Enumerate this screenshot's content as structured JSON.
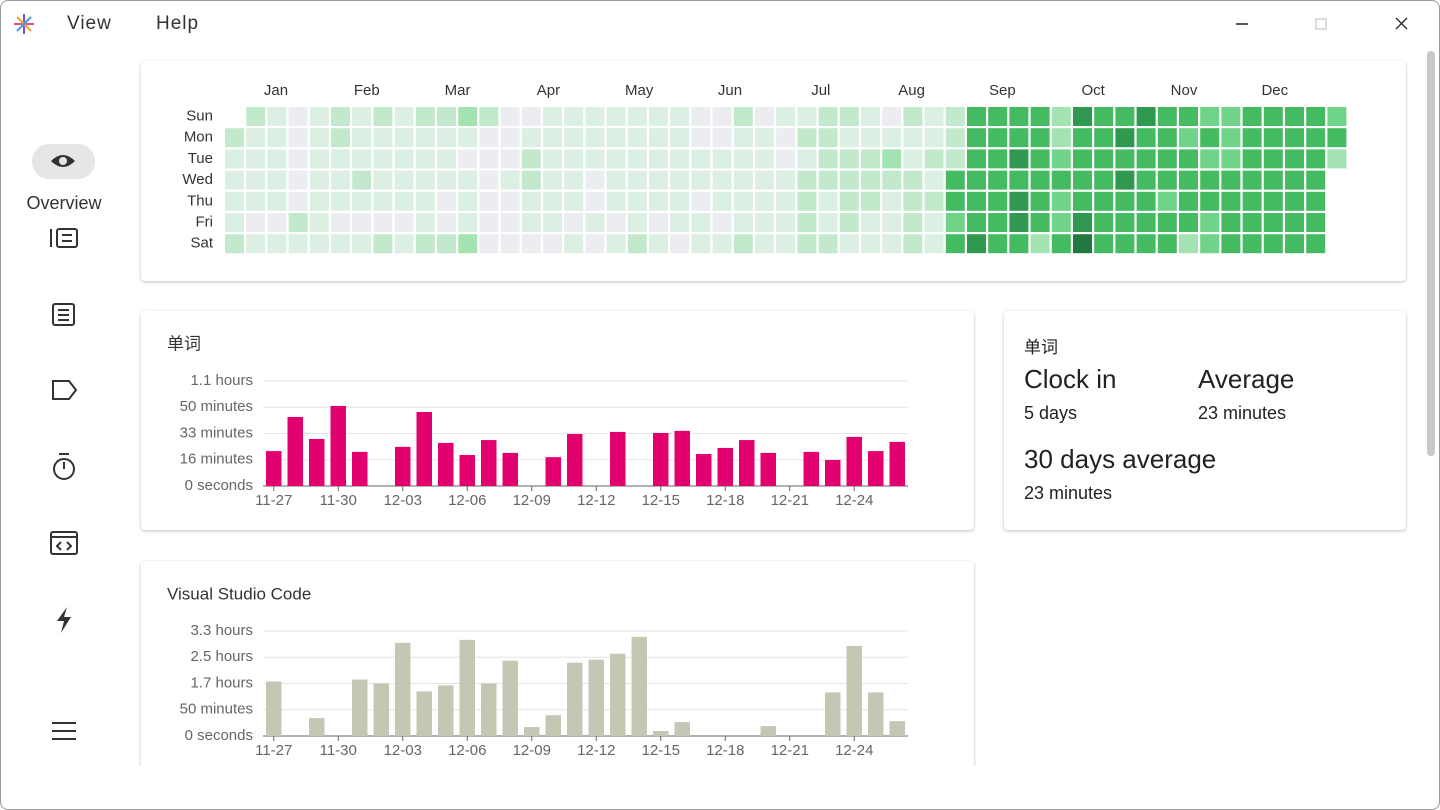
{
  "menu": [
    "View",
    "Help"
  ],
  "sidebar": {
    "active": "Overview"
  },
  "stats": {
    "title": "单词",
    "items": [
      {
        "label": "Clock in",
        "value": "5 days"
      },
      {
        "label": "Average",
        "value": "23 minutes"
      },
      {
        "label": "30 days average",
        "value": "23 minutes"
      }
    ]
  },
  "chart_data": [
    {
      "type": "heatmap",
      "months": [
        "Jan",
        "Feb",
        "Mar",
        "Apr",
        "May",
        "Jun",
        "Jul",
        "Aug",
        "Sep",
        "Oct",
        "Nov",
        "Dec"
      ],
      "weekdays": [
        "Sun",
        "Mon",
        "Tue",
        "Wed",
        "Thu",
        "Fri",
        "Sat"
      ],
      "colors": [
        "#ebedf0",
        "#dcefe3",
        "#c3e9cd",
        "#a3e3b2",
        "#6fd488",
        "#44bb60",
        "#2f9a4f",
        "#237840"
      ],
      "levels": [
        [
          null,
          2,
          1,
          0,
          1,
          2,
          1,
          2,
          1,
          2,
          2,
          3,
          2,
          0,
          0,
          1,
          1,
          1,
          1,
          1,
          1,
          1,
          0,
          0,
          2,
          0,
          1,
          1,
          2,
          2,
          1,
          0,
          2,
          1,
          2,
          5,
          5,
          5,
          5,
          3,
          6,
          5,
          5,
          6,
          5,
          5,
          4,
          4,
          5,
          5,
          5,
          5,
          4
        ],
        [
          2,
          1,
          1,
          0,
          1,
          2,
          1,
          1,
          1,
          1,
          1,
          1,
          0,
          0,
          1,
          1,
          1,
          1,
          1,
          1,
          1,
          1,
          0,
          0,
          1,
          1,
          0,
          2,
          2,
          1,
          1,
          1,
          1,
          1,
          2,
          5,
          5,
          5,
          5,
          3,
          5,
          5,
          6,
          5,
          5,
          4,
          5,
          4,
          5,
          5,
          5,
          5,
          5
        ],
        [
          1,
          1,
          1,
          0,
          1,
          1,
          1,
          1,
          1,
          1,
          1,
          0,
          0,
          0,
          2,
          1,
          1,
          1,
          1,
          1,
          1,
          1,
          1,
          1,
          1,
          1,
          0,
          1,
          2,
          2,
          2,
          3,
          1,
          2,
          2,
          5,
          5,
          6,
          5,
          4,
          5,
          5,
          5,
          5,
          5,
          5,
          4,
          4,
          5,
          5,
          5,
          5,
          3
        ],
        [
          1,
          1,
          1,
          0,
          1,
          1,
          2,
          1,
          1,
          1,
          1,
          1,
          0,
          1,
          2,
          1,
          1,
          0,
          1,
          1,
          1,
          1,
          1,
          1,
          1,
          1,
          1,
          2,
          2,
          2,
          2,
          2,
          2,
          1,
          5,
          5,
          5,
          5,
          5,
          5,
          5,
          5,
          6,
          5,
          5,
          5,
          5,
          5,
          5,
          5,
          5,
          5,
          null
        ],
        [
          1,
          1,
          1,
          0,
          1,
          1,
          1,
          1,
          1,
          1,
          0,
          1,
          0,
          0,
          1,
          1,
          1,
          0,
          1,
          1,
          1,
          1,
          0,
          1,
          1,
          1,
          1,
          2,
          1,
          2,
          2,
          1,
          2,
          2,
          5,
          5,
          5,
          6,
          5,
          4,
          5,
          5,
          5,
          5,
          4,
          5,
          5,
          5,
          5,
          5,
          5,
          5,
          null
        ],
        [
          1,
          0,
          0,
          2,
          1,
          0,
          0,
          0,
          0,
          1,
          0,
          1,
          0,
          0,
          1,
          1,
          0,
          1,
          0,
          1,
          0,
          1,
          1,
          0,
          1,
          1,
          1,
          2,
          1,
          2,
          1,
          1,
          2,
          1,
          4,
          5,
          5,
          6,
          5,
          4,
          6,
          5,
          5,
          5,
          5,
          5,
          4,
          5,
          5,
          5,
          5,
          5,
          null
        ],
        [
          2,
          1,
          1,
          1,
          1,
          1,
          1,
          2,
          1,
          2,
          2,
          3,
          0,
          0,
          0,
          0,
          1,
          0,
          1,
          2,
          1,
          0,
          1,
          1,
          2,
          1,
          1,
          2,
          2,
          1,
          1,
          1,
          2,
          1,
          5,
          6,
          5,
          5,
          3,
          5,
          7,
          5,
          5,
          5,
          5,
          3,
          4,
          5,
          5,
          5,
          5,
          5,
          null
        ]
      ]
    },
    {
      "type": "bar",
      "title": "单词",
      "color": "#e2006e",
      "categories": [
        "11-27",
        null,
        null,
        "11-30",
        null,
        null,
        "12-03",
        null,
        null,
        "12-06",
        null,
        null,
        "12-09",
        null,
        null,
        "12-12",
        null,
        null,
        "12-15",
        null,
        null,
        "12-18",
        null,
        null,
        "12-21",
        null,
        null,
        "12-24",
        null,
        null
      ],
      "values": [
        1330,
        2630,
        1790,
        3050,
        1300,
        0,
        1490,
        2820,
        1640,
        1180,
        1750,
        1260,
        0,
        1100,
        1980,
        0,
        2060,
        0,
        2020,
        2100,
        1220,
        1450,
        1750,
        1260,
        0,
        1300,
        990,
        1870,
        1330,
        1680
      ],
      "ylim": [
        0,
        4000
      ],
      "yticks": [
        {
          "value": 0,
          "label": "0 seconds"
        },
        {
          "value": 1000,
          "label": "16 minutes"
        },
        {
          "value": 2000,
          "label": "33 minutes"
        },
        {
          "value": 3000,
          "label": "50 minutes"
        },
        {
          "value": 4000,
          "label": "1.1 hours"
        }
      ],
      "grid": true
    },
    {
      "type": "bar",
      "title": "Visual Studio Code",
      "color": "#c4c7b4",
      "categories": [
        "11-27",
        null,
        null,
        "11-30",
        null,
        null,
        "12-03",
        null,
        null,
        "12-06",
        null,
        null,
        "12-09",
        null,
        null,
        "12-12",
        null,
        null,
        "12-15",
        null,
        null,
        "12-18",
        null,
        null,
        "12-21",
        null,
        null,
        "12-24",
        null,
        null
      ],
      "values": [
        6230,
        0,
        2040,
        0,
        6450,
        6000,
        10650,
        5100,
        5780,
        10990,
        6000,
        8600,
        1020,
        2380,
        8380,
        8720,
        9400,
        11330,
        570,
        1590,
        0,
        0,
        0,
        1130,
        0,
        0,
        4980,
        10300,
        4980,
        1700
      ],
      "ylim": [
        0,
        12000
      ],
      "yticks": [
        {
          "value": 0,
          "label": "0 seconds"
        },
        {
          "value": 3000,
          "label": "50 minutes"
        },
        {
          "value": 6000,
          "label": "1.7 hours"
        },
        {
          "value": 9000,
          "label": "2.5 hours"
        },
        {
          "value": 12000,
          "label": "3.3 hours"
        }
      ],
      "grid": true
    }
  ]
}
